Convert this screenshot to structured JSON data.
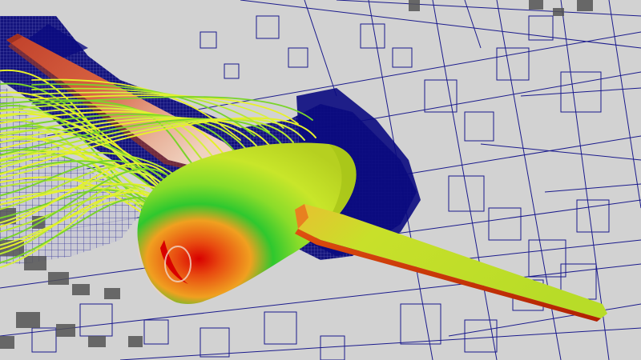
{
  "colors": {
    "background": "#d2d2d2",
    "mesh_line": "#1a1a8c",
    "refined_region": "#0b0b80",
    "shadow_block": "#555555",
    "surface_low": "#c8e62a",
    "surface_mid": "#2ec82e",
    "surface_high": "#e84a10",
    "surface_peak": "#d80000",
    "wing_red": "#d4492a",
    "wing_tip_pink": "#ecc0a8",
    "streamline_yellow": "#e6f02a",
    "streamline_green": "#7ad42a"
  },
  "scene": {
    "view": "3d-cfd-visualization",
    "elements": [
      "adaptive-mesh-cut-plane",
      "aircraft-nacelle",
      "left-wing",
      "right-wing",
      "streamlines"
    ]
  }
}
